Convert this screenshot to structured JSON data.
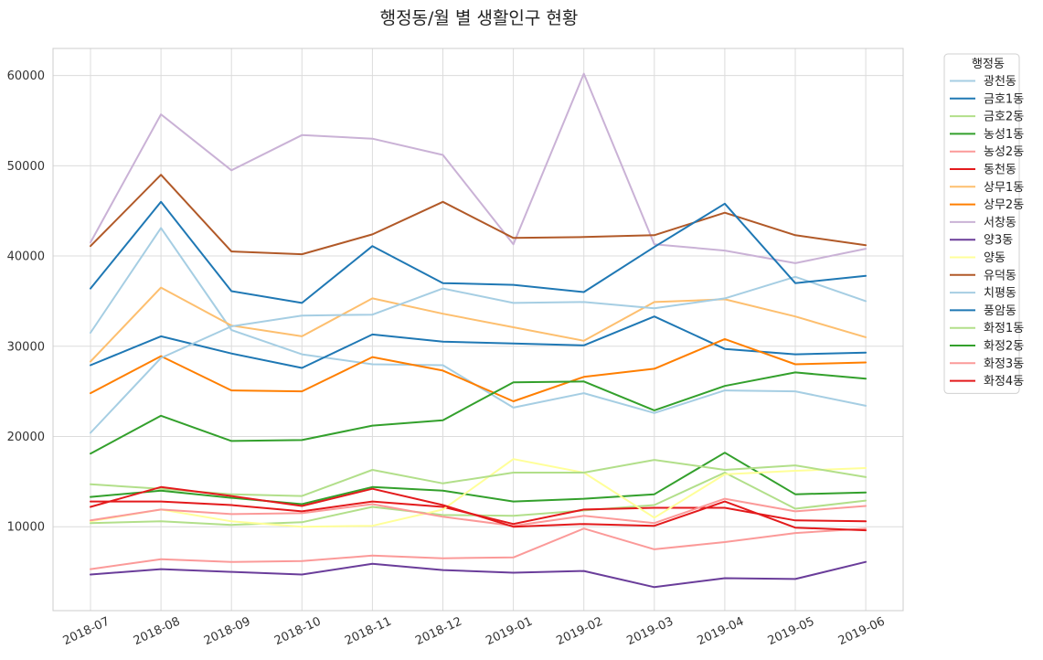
{
  "chart_data": {
    "type": "line",
    "title": "행정동/월 별 생활인구 현황",
    "xlabel": "",
    "ylabel": "",
    "ylim": [
      700,
      63000
    ],
    "y_ticks": [
      10000,
      20000,
      30000,
      40000,
      50000,
      60000
    ],
    "y_tick_labels": [
      "10000",
      "20000",
      "30000",
      "40000",
      "50000",
      "60000"
    ],
    "categories": [
      "2018-07",
      "2018-08",
      "2018-09",
      "2018-10",
      "2018-11",
      "2018-12",
      "2019-01",
      "2019-02",
      "2019-03",
      "2019-04",
      "2019-05",
      "2019-06"
    ],
    "grid": true,
    "legend": {
      "title": "행정동",
      "placement": "outside-right"
    },
    "series": [
      {
        "name": "광천동",
        "color": "#a6cee3",
        "values": [
          31500,
          43100,
          31800,
          29100,
          28000,
          27900,
          23200,
          24800,
          22600,
          25100,
          25000,
          23400
        ]
      },
      {
        "name": "금호1동",
        "color": "#1f78b4",
        "values": [
          27900,
          31100,
          29200,
          27600,
          31300,
          30500,
          30300,
          30100,
          33300,
          29700,
          29100,
          29300
        ]
      },
      {
        "name": "금호2동",
        "color": "#b2df8a",
        "values": [
          10400,
          10600,
          10200,
          10500,
          12200,
          11300,
          11200,
          11800,
          12400,
          16000,
          12000,
          12900
        ]
      },
      {
        "name": "농성1동",
        "color": "#33a02c",
        "values": [
          13300,
          14000,
          13200,
          12500,
          14400,
          14000,
          12800,
          13100,
          13600,
          18200,
          13600,
          13800
        ]
      },
      {
        "name": "농성2동",
        "color": "#fb9a99",
        "values": [
          5300,
          6400,
          6100,
          6200,
          6800,
          6500,
          6600,
          9800,
          7500,
          8300,
          9300,
          9800
        ]
      },
      {
        "name": "동천동",
        "color": "#e31a1c",
        "values": [
          12800,
          12800,
          12400,
          11700,
          12800,
          12200,
          10300,
          11900,
          12100,
          12100,
          10700,
          10600
        ]
      },
      {
        "name": "상무1동",
        "color": "#fdbf6f",
        "values": [
          28300,
          36500,
          32300,
          31100,
          35300,
          33600,
          32100,
          30600,
          34900,
          35200,
          33300,
          31000
        ]
      },
      {
        "name": "상무2동",
        "color": "#ff7f00",
        "values": [
          24800,
          28900,
          25100,
          25000,
          28800,
          27300,
          23900,
          26600,
          27500,
          30800,
          28000,
          28200
        ]
      },
      {
        "name": "서창동",
        "color": "#cab2d6",
        "values": [
          41500,
          55700,
          49500,
          53400,
          53000,
          51200,
          41300,
          60200,
          41300,
          40600,
          39200,
          40800
        ]
      },
      {
        "name": "양3동",
        "color": "#6a3d9a",
        "values": [
          4700,
          5300,
          5000,
          4700,
          5900,
          5200,
          4900,
          5100,
          3300,
          4300,
          4200,
          6100
        ]
      },
      {
        "name": "양동",
        "color": "#ffff99",
        "values": [
          10600,
          11900,
          10600,
          10000,
          10100,
          11900,
          17500,
          16000,
          11000,
          15800,
          16200,
          16500
        ]
      },
      {
        "name": "유덕동",
        "color": "#b15928",
        "values": [
          41100,
          49000,
          40500,
          40200,
          42400,
          46000,
          42000,
          42100,
          42300,
          44800,
          42300,
          41200
        ]
      },
      {
        "name": "치평동",
        "color": "#a6cee3",
        "values": [
          20400,
          28700,
          32200,
          33400,
          33500,
          36400,
          34800,
          34900,
          34200,
          35300,
          37700,
          35000
        ]
      },
      {
        "name": "풍암동",
        "color": "#1f78b4",
        "values": [
          36400,
          46000,
          36100,
          34800,
          41100,
          37000,
          36800,
          36000,
          41000,
          45800,
          37000,
          37800
        ]
      },
      {
        "name": "화정1동",
        "color": "#b2df8a",
        "values": [
          14700,
          14200,
          13600,
          13400,
          16300,
          14800,
          16000,
          16000,
          17400,
          16300,
          16800,
          15500
        ]
      },
      {
        "name": "화정2동",
        "color": "#33a02c",
        "values": [
          18100,
          22300,
          19500,
          19600,
          21200,
          21800,
          26000,
          26100,
          22900,
          25600,
          27100,
          26400
        ]
      },
      {
        "name": "화정3동",
        "color": "#fb9a99",
        "values": [
          10700,
          11900,
          11400,
          11500,
          12500,
          11100,
          10100,
          11200,
          10400,
          13100,
          11700,
          12300
        ]
      },
      {
        "name": "화정4동",
        "color": "#e31a1c",
        "values": [
          12200,
          14400,
          13400,
          12300,
          14200,
          12400,
          10000,
          10300,
          10100,
          12800,
          9900,
          9600
        ]
      }
    ]
  }
}
